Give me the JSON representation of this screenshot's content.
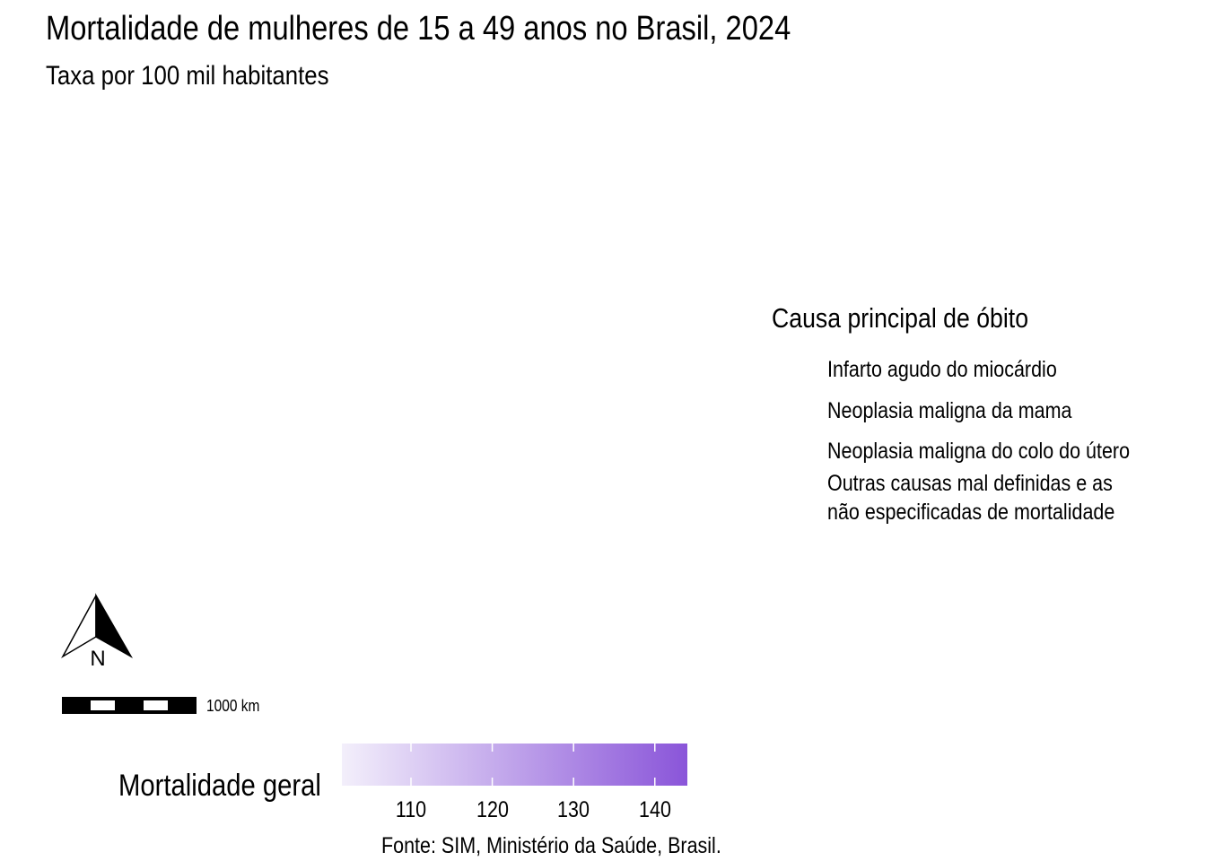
{
  "title": "Mortalidade de mulheres de 15 a 49 anos no Brasil, 2024",
  "subtitle": "Taxa por 100 mil habitantes",
  "legend_causes": {
    "title": "Causa principal de óbito",
    "items": [
      "Infarto agudo do miocárdio",
      "Neoplasia maligna da mama",
      "Neoplasia maligna do colo do útero",
      "Outras causas mal definidas e as não especificadas de mortalidade"
    ],
    "items_display": [
      [
        "Infarto agudo do miocárdio"
      ],
      [
        "Neoplasia maligna da mama"
      ],
      [
        "Neoplasia maligna do colo do útero"
      ],
      [
        "Outras causas mal definidas e as",
        "não especificadas de mortalidade"
      ]
    ]
  },
  "north_arrow": {
    "label": "N",
    "icon": "north-arrow-icon"
  },
  "scale_bar": {
    "label": "1000 km"
  },
  "colorbar": {
    "title": "Mortalidade geral",
    "color_low": "#f3effb",
    "color_high": "#8a55d9",
    "range": [
      101.5,
      144
    ],
    "ticks": [
      110,
      120,
      130,
      140
    ],
    "tick_labels": [
      "110",
      "120",
      "130",
      "140"
    ]
  },
  "caption": "Fonte: SIM, Ministério da Saúde, Brasil."
}
